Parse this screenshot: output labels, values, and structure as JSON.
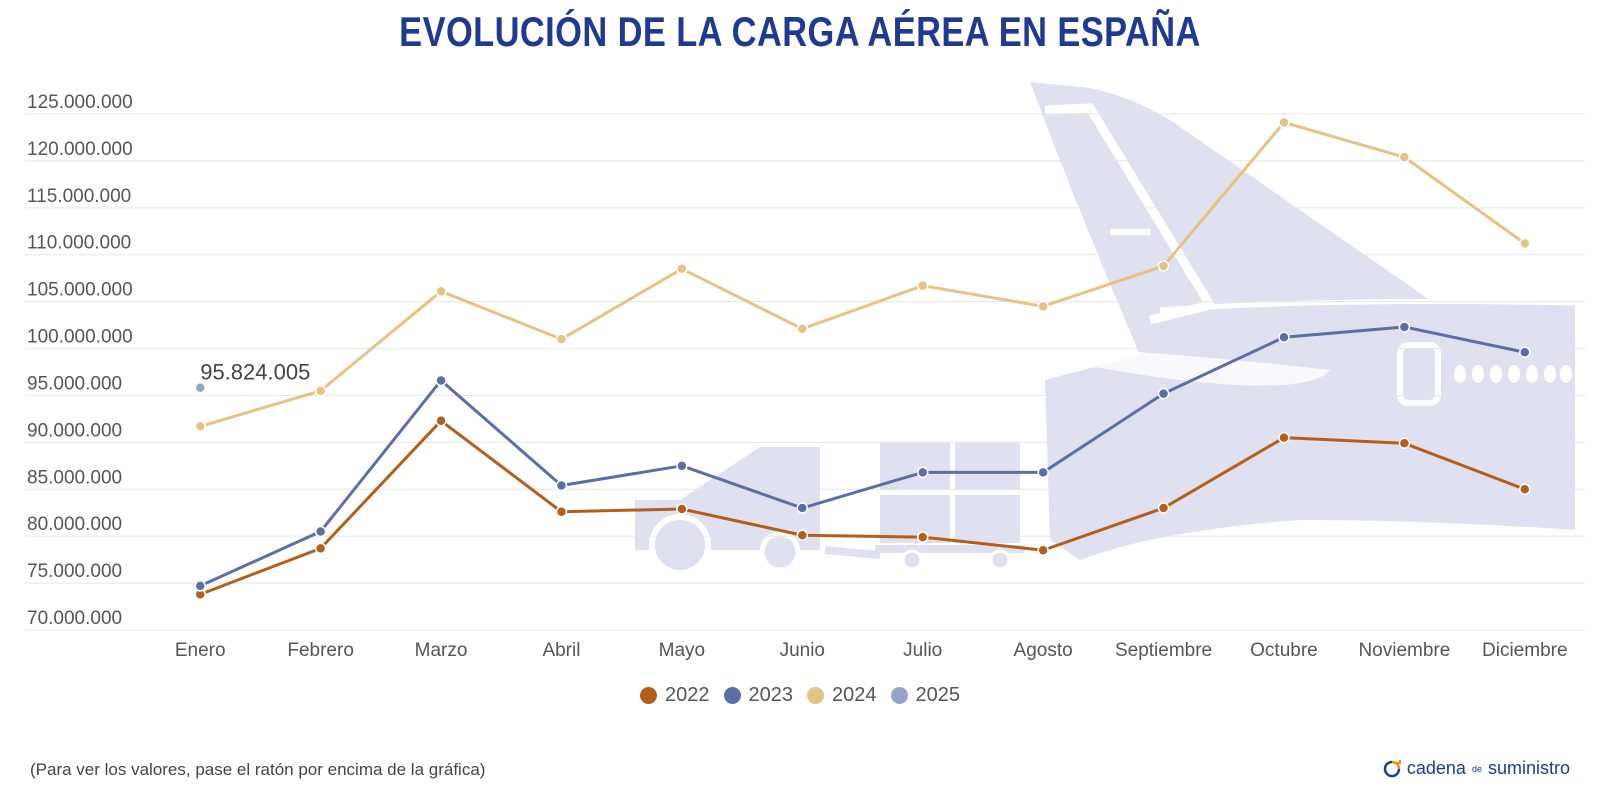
{
  "title": "EVOLUCIÓN DE LA CARGA AÉREA EN ESPAÑA",
  "footnote": "(Para ver los valores, pase el ratón por encima de la gráfica)",
  "brand": {
    "part1": "cadena",
    "part2": "de",
    "part3": "suministro",
    "icon": "refresh-arrows-icon"
  },
  "colors": {
    "title": "#1f3a93",
    "watermark": "#dfe1f1",
    "grid": "#e5e5e5"
  },
  "chart_data": {
    "type": "line",
    "categories": [
      "Enero",
      "Febrero",
      "Marzo",
      "Abril",
      "Mayo",
      "Junio",
      "Julio",
      "Agosto",
      "Septiembre",
      "Octubre",
      "Noviembre",
      "Diciembre"
    ],
    "ylim": [
      70000000,
      125000000
    ],
    "yticks": [
      70000000,
      75000000,
      80000000,
      85000000,
      90000000,
      95000000,
      100000000,
      105000000,
      110000000,
      115000000,
      120000000,
      125000000
    ],
    "ytick_labels": [
      "70.000.000",
      "75.000.000",
      "80.000.000",
      "85.000.000",
      "90.000.000",
      "95.000.000",
      "100.000.000",
      "105.000.000",
      "110.000.000",
      "115.000.000",
      "120.000.000",
      "125.000.000"
    ],
    "grid": true,
    "legend_position": "bottom",
    "series": [
      {
        "name": "2022",
        "color": "#b35f1c",
        "values": [
          73800000,
          78700000,
          92300000,
          82600000,
          82900000,
          80100000,
          79900000,
          78500000,
          83000000,
          90500000,
          89900000,
          85000000
        ]
      },
      {
        "name": "2023",
        "color": "#5b6ea6",
        "values": [
          74700000,
          80500000,
          96600000,
          85400000,
          87500000,
          83000000,
          86800000,
          86800000,
          95200000,
          101200000,
          102300000,
          99600000
        ]
      },
      {
        "name": "2024",
        "color": "#e6c383",
        "values": [
          91700000,
          95500000,
          106100000,
          101000000,
          108500000,
          102100000,
          106700000,
          104500000,
          108800000,
          124100000,
          120400000,
          111200000
        ]
      },
      {
        "name": "2025",
        "color": "#96a3cc",
        "values": [
          95824005,
          null,
          null,
          null,
          null,
          null,
          null,
          null,
          null,
          null,
          null,
          null
        ]
      }
    ],
    "annotations": [
      {
        "series": "2025",
        "category": "Enero",
        "text": "95.824.005"
      }
    ]
  }
}
